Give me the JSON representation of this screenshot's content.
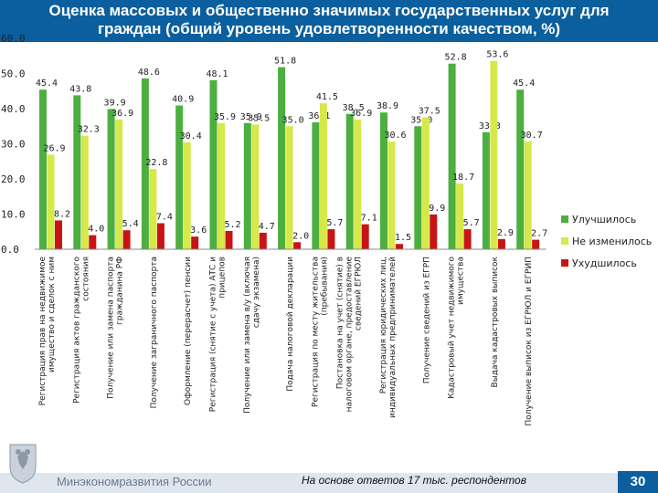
{
  "header": {
    "title_line1": "Оценка массовых и общественно значимых государственных услуг для",
    "title_line2": "граждан (общий уровень удовлетворенности качеством, %)"
  },
  "footer": {
    "ministry": "Минэкономразвития России",
    "note": "На основе ответов 17 тыс. респондентов",
    "page": "30"
  },
  "colors": {
    "improved": "#4caf3f",
    "unchanged": "#d6e84a",
    "worse": "#c81414",
    "header": "#0b5f9e"
  },
  "chart_data": {
    "type": "bar",
    "categories": [
      "Регистрация прав на недвижимое имущество и сделок с ним",
      "Регистрация актов гражданского состояния",
      "Получение или замена паспорта гражданина РФ",
      "Получение заграничного паспорта",
      "Оформление (перерасчет) пенсии",
      "Регистрация (снятие с учета) АТС и прицепов",
      "Получение или замена в/у (включая сдачу экзамена)",
      "Подача налоговой декларации",
      "Регистрация по месту жительства (пребывания)",
      "Постановка на учет (снятие) в налоговом органе, предоставление сведений ЕГРЮЛ",
      "Регистрация юридических лиц, индивидуальных предпринимателей",
      "Получение сведений из ЕГРП",
      "Кадастровый учет недвижимого имущества",
      "Выдача кадастровых выписок",
      "Получение выписок из ЕГРЮЛ и ЕГРИП"
    ],
    "series": [
      {
        "name": "Улучшилось",
        "values": [
          45.4,
          43.8,
          39.9,
          48.6,
          40.9,
          48.1,
          35.9,
          51.8,
          36.1,
          38.5,
          38.9,
          35.0,
          52.8,
          33.3,
          45.4
        ]
      },
      {
        "name": "Не изменилось",
        "values": [
          26.9,
          32.3,
          36.9,
          22.8,
          30.4,
          35.9,
          35.5,
          35.0,
          41.5,
          36.9,
          30.6,
          37.5,
          18.7,
          53.6,
          30.7
        ]
      },
      {
        "name": "Ухудшилось",
        "values": [
          8.2,
          4.0,
          5.4,
          7.4,
          3.6,
          5.2,
          4.7,
          2.0,
          5.7,
          7.1,
          1.5,
          9.9,
          5.7,
          2.9,
          2.7
        ]
      }
    ],
    "ylim": [
      0,
      60
    ],
    "yticks": [
      "0.0",
      "10.0",
      "20.0",
      "30.0",
      "40.0",
      "50.0",
      "60.0"
    ],
    "grid": false,
    "legend_position": "right"
  }
}
